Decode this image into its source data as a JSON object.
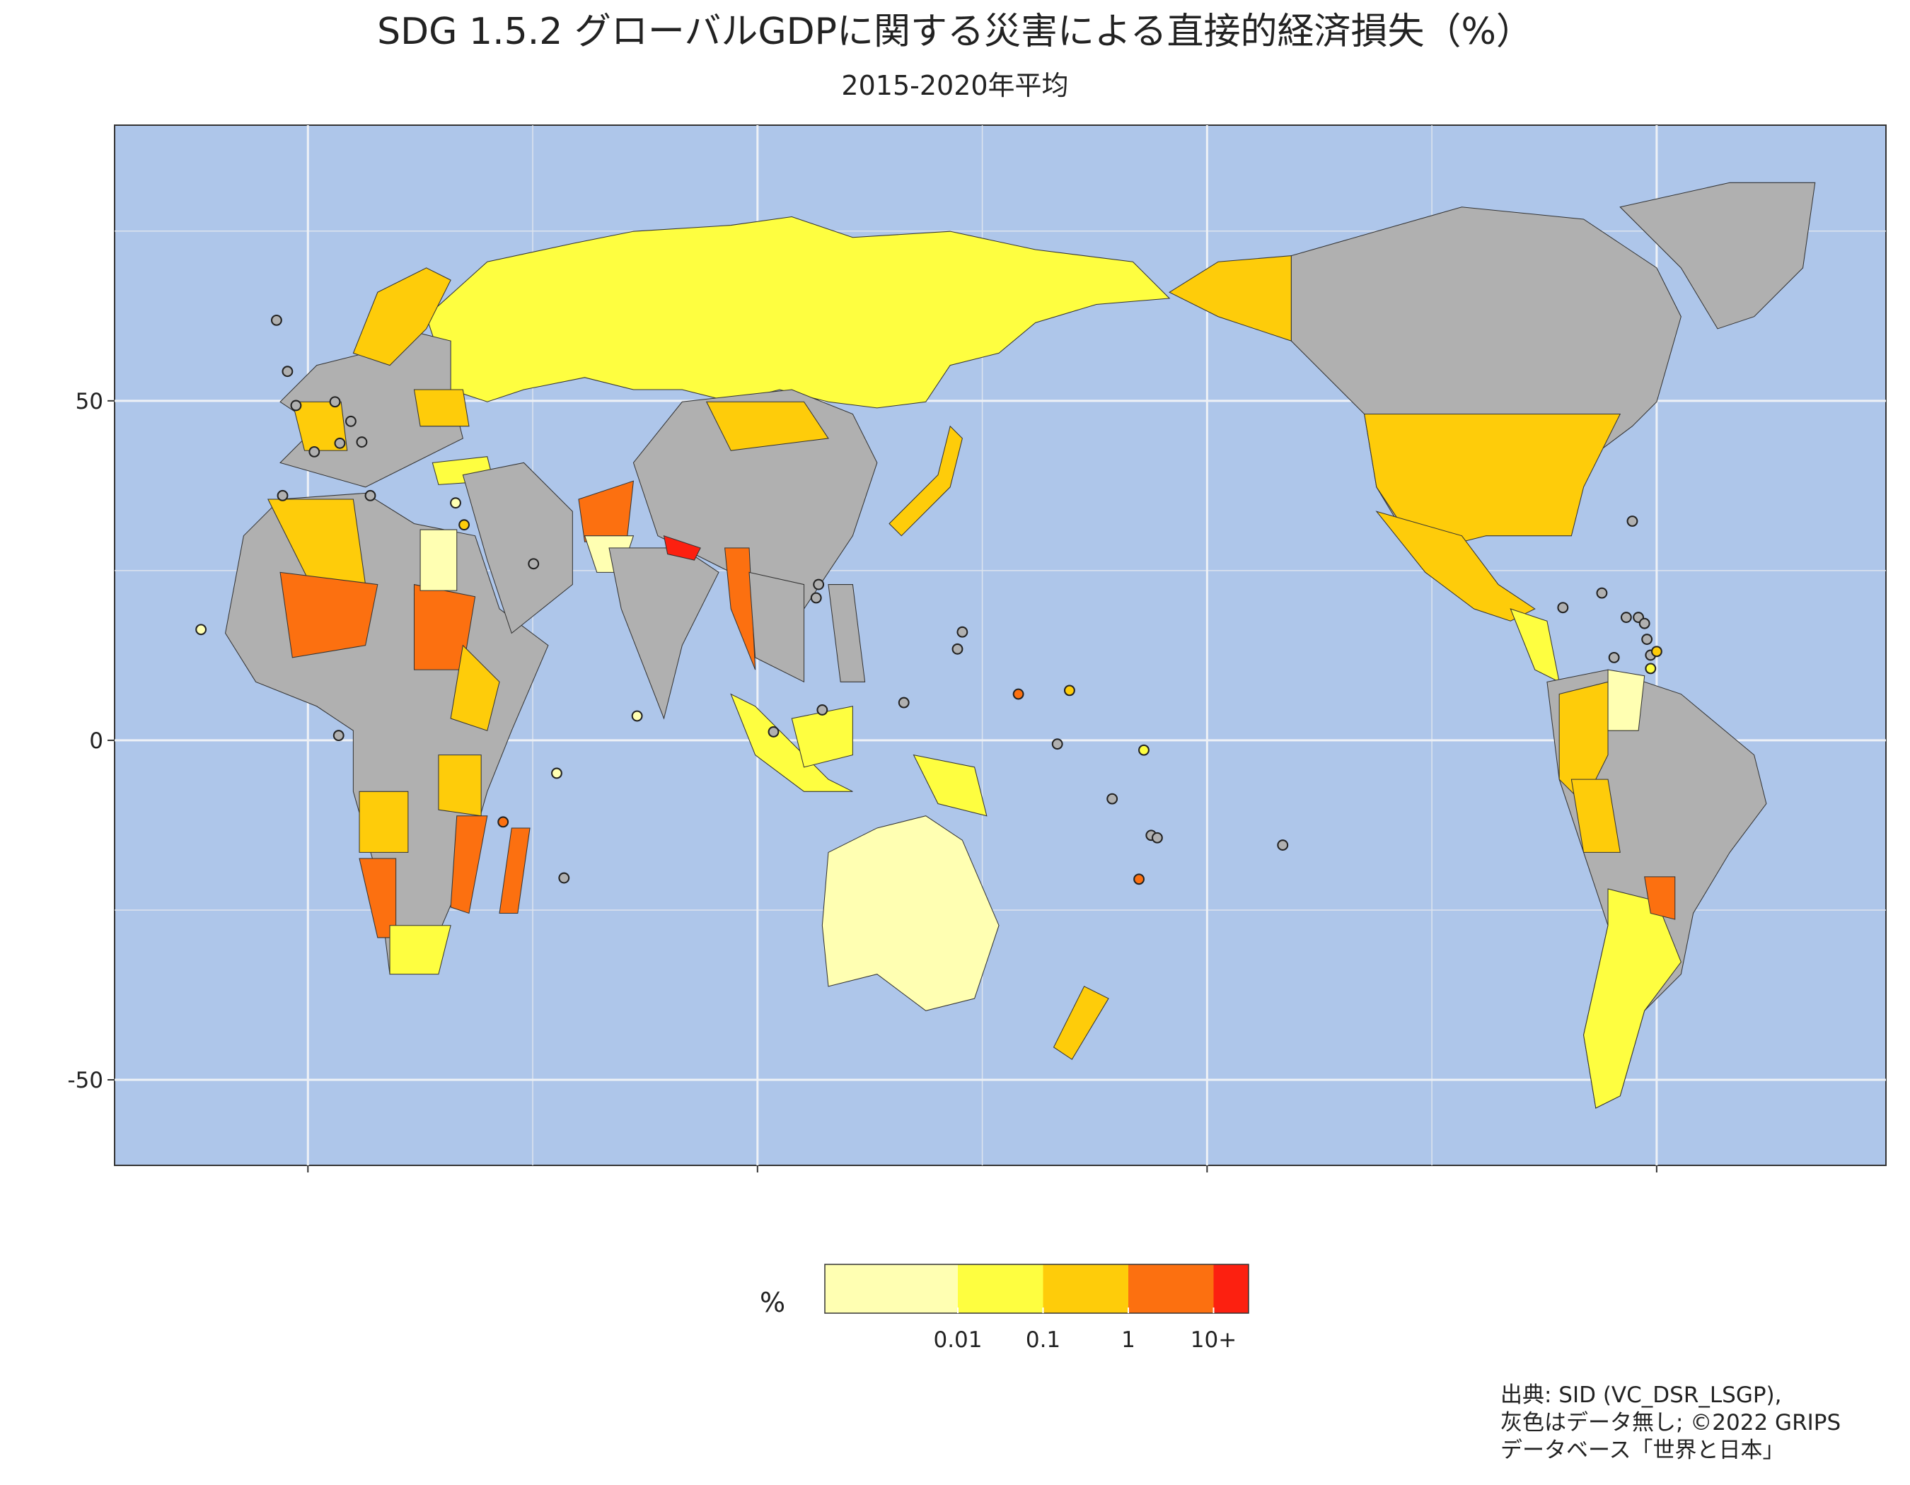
{
  "title": "SDG 1.5.2  グローバルGDPに関する災害による直接的経済損失（%）",
  "subtitle": "2015-2020年平均",
  "map": {
    "xlim": [
      -43,
      351
    ],
    "xticks": [
      0,
      100,
      200,
      300
    ],
    "xminor": [
      50,
      150,
      250
    ],
    "ylim": [
      -62.6,
      90.6
    ],
    "yticks": [
      50,
      0,
      -50
    ],
    "yminor": [
      -25,
      25,
      75
    ],
    "grid": true
  },
  "legend": {
    "title": "%",
    "ticks": [
      0.01,
      0.1,
      1,
      {
        "value": 10,
        "label": "10+"
      }
    ],
    "colors": [
      "#ffffb2",
      "#fefe40",
      "#fecc0a",
      "#fc7010",
      "#fc2010"
    ]
  },
  "source": [
    "出典: SID (VC_DSR_LSGP),",
    "灰色はデータ無し; ©2022 GRIPS",
    " データベース「世界と日本」"
  ]
}
